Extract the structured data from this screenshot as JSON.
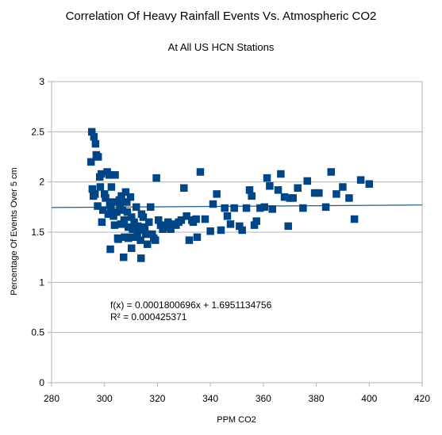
{
  "chart_data": {
    "type": "scatter",
    "title": "Correlation Of Heavy Rainfall Events Vs. Atmospheric CO2",
    "subtitle": "At All US HCN Stations",
    "xlabel": "PPM CO2",
    "ylabel": "Percentage Of Events Over 5 cm",
    "xlim": [
      280,
      420
    ],
    "ylim": [
      0,
      3
    ],
    "xticks": [
      "280",
      "300",
      "320",
      "340",
      "360",
      "380",
      "400",
      "420"
    ],
    "yticks": [
      "0",
      "0.5",
      "1",
      "1.5",
      "2",
      "2.5",
      "3"
    ],
    "grid": "horizontal",
    "marker_color": "#004586",
    "trendline_color": "#1f5f8b",
    "trendline": {
      "slope": 0.0001800696,
      "intercept": 1.6951134756
    },
    "equation": "f(x) = 0.0001800696x + 1.6951134756",
    "r_squared": "R² = 0.000425371",
    "points": [
      [
        295.2,
        2.5
      ],
      [
        296.0,
        2.45
      ],
      [
        296.6,
        2.38
      ],
      [
        296.9,
        2.27
      ],
      [
        297.6,
        2.25
      ],
      [
        294.9,
        2.2
      ],
      [
        295.4,
        1.93
      ],
      [
        295.8,
        1.86
      ],
      [
        296.4,
        1.88
      ],
      [
        297.4,
        1.76
      ],
      [
        298.2,
        2.05
      ],
      [
        298.8,
        2.08
      ],
      [
        298.4,
        1.95
      ],
      [
        299.4,
        1.72
      ],
      [
        299.0,
        1.6
      ],
      [
        300.0,
        1.88
      ],
      [
        300.4,
        1.84
      ],
      [
        301.0,
        2.1
      ],
      [
        301.8,
        2.07
      ],
      [
        302.0,
        1.77
      ],
      [
        301.4,
        1.68
      ],
      [
        302.6,
        1.95
      ],
      [
        302.4,
        1.73
      ],
      [
        303.0,
        1.8
      ],
      [
        303.4,
        1.66
      ],
      [
        303.8,
        1.57
      ],
      [
        304.0,
        2.07
      ],
      [
        304.6,
        1.7
      ],
      [
        305.0,
        1.44
      ],
      [
        305.6,
        1.82
      ],
      [
        305.8,
        1.75
      ],
      [
        306.4,
        1.86
      ],
      [
        306.8,
        1.72
      ],
      [
        307.4,
        1.62
      ],
      [
        307.6,
        1.45
      ],
      [
        308.0,
        1.9
      ],
      [
        308.4,
        1.8
      ],
      [
        308.6,
        1.7
      ],
      [
        309.0,
        1.55
      ],
      [
        309.4,
        1.45
      ],
      [
        309.8,
        1.85
      ],
      [
        310.2,
        1.65
      ],
      [
        310.6,
        1.53
      ],
      [
        311.2,
        1.6
      ],
      [
        311.6,
        1.45
      ],
      [
        312.0,
        1.75
      ],
      [
        312.6,
        1.56
      ],
      [
        313.0,
        1.52
      ],
      [
        313.6,
        1.42
      ],
      [
        314.0,
        1.68
      ],
      [
        314.6,
        1.65
      ],
      [
        315.2,
        1.55
      ],
      [
        315.6,
        1.48
      ],
      [
        316.2,
        1.38
      ],
      [
        316.8,
        1.6
      ],
      [
        317.4,
        1.75
      ],
      [
        318.0,
        1.48
      ],
      [
        318.6,
        1.44
      ],
      [
        319.2,
        1.42
      ],
      [
        319.6,
        2.04
      ],
      [
        320.4,
        1.62
      ],
      [
        321.2,
        1.57
      ],
      [
        322.0,
        1.53
      ],
      [
        323.0,
        1.55
      ],
      [
        324.0,
        1.6
      ],
      [
        325.0,
        1.53
      ],
      [
        326.0,
        1.58
      ],
      [
        327.0,
        1.57
      ],
      [
        328.0,
        1.6
      ],
      [
        329.0,
        1.62
      ],
      [
        330.0,
        1.94
      ],
      [
        331.0,
        1.66
      ],
      [
        332.0,
        1.42
      ],
      [
        333.0,
        1.62
      ],
      [
        333.5,
        1.6
      ],
      [
        334.6,
        1.63
      ],
      [
        335.0,
        1.45
      ],
      [
        336.2,
        2.1
      ],
      [
        338.0,
        1.63
      ],
      [
        340.0,
        1.51
      ],
      [
        341.0,
        1.78
      ],
      [
        342.4,
        1.88
      ],
      [
        344.0,
        1.52
      ],
      [
        345.4,
        1.74
      ],
      [
        346.4,
        1.66
      ],
      [
        347.6,
        1.58
      ],
      [
        349.0,
        1.74
      ],
      [
        351.0,
        1.56
      ],
      [
        352.0,
        1.52
      ],
      [
        353.6,
        1.74
      ],
      [
        354.8,
        1.92
      ],
      [
        355.6,
        1.86
      ],
      [
        356.6,
        1.57
      ],
      [
        357.4,
        1.61
      ],
      [
        358.8,
        1.74
      ],
      [
        360.4,
        1.75
      ],
      [
        361.4,
        2.04
      ],
      [
        362.4,
        1.96
      ],
      [
        363.4,
        1.73
      ],
      [
        365.6,
        1.92
      ],
      [
        366.6,
        2.08
      ],
      [
        368.0,
        1.85
      ],
      [
        369.4,
        1.56
      ],
      [
        370.0,
        1.84
      ],
      [
        371.2,
        1.84
      ],
      [
        373.0,
        1.94
      ],
      [
        375.0,
        1.74
      ],
      [
        376.6,
        2.01
      ],
      [
        379.4,
        1.89
      ],
      [
        381.0,
        1.89
      ],
      [
        383.6,
        1.75
      ],
      [
        385.6,
        2.1
      ],
      [
        387.6,
        1.88
      ],
      [
        390.0,
        1.95
      ],
      [
        392.4,
        1.84
      ],
      [
        394.4,
        1.63
      ],
      [
        396.8,
        2.02
      ],
      [
        400.0,
        1.98
      ]
    ],
    "extra_low_points": [
      [
        302.2,
        1.33
      ],
      [
        305.2,
        1.43
      ],
      [
        307.2,
        1.25
      ],
      [
        310.2,
        1.34
      ],
      [
        312.4,
        1.46
      ],
      [
        313.8,
        1.24
      ],
      [
        309.0,
        1.44
      ],
      [
        306.2,
        1.58
      ]
    ]
  }
}
